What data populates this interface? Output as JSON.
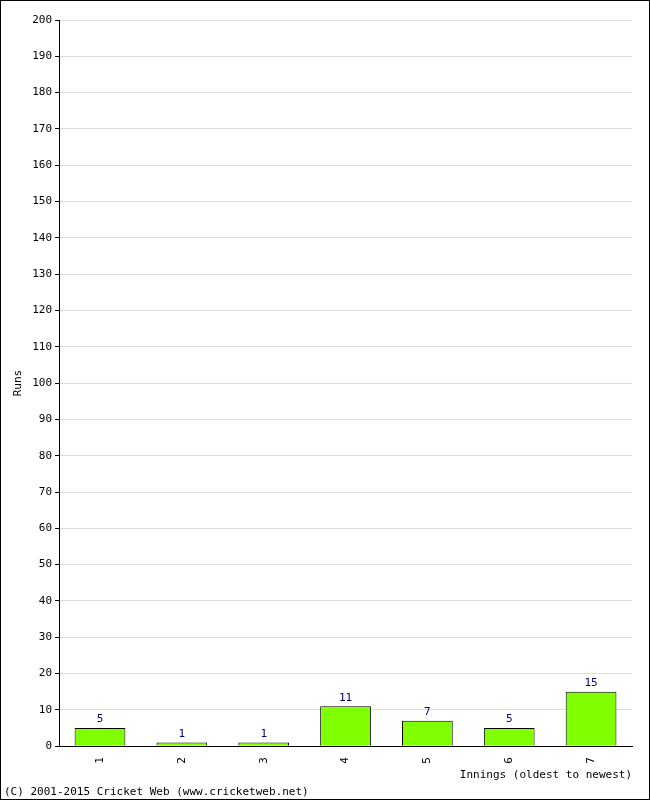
{
  "chart_data": {
    "type": "bar",
    "categories": [
      "1",
      "2",
      "3",
      "4",
      "5",
      "6",
      "7"
    ],
    "values": [
      5,
      1,
      1,
      11,
      7,
      5,
      15
    ],
    "color": "#80ff00",
    "ylim": [
      0,
      200
    ],
    "yticks": [
      0,
      10,
      20,
      30,
      40,
      50,
      60,
      70,
      80,
      90,
      100,
      110,
      120,
      130,
      140,
      150,
      160,
      170,
      180,
      190,
      200
    ],
    "grid": true,
    "data_labels": true,
    "x_label": "Innings (oldest to newest)",
    "y_label": "Runs",
    "annotations": [
      "(C) 2001-2015 Cricket Web (www.cricketweb.net)"
    ]
  }
}
